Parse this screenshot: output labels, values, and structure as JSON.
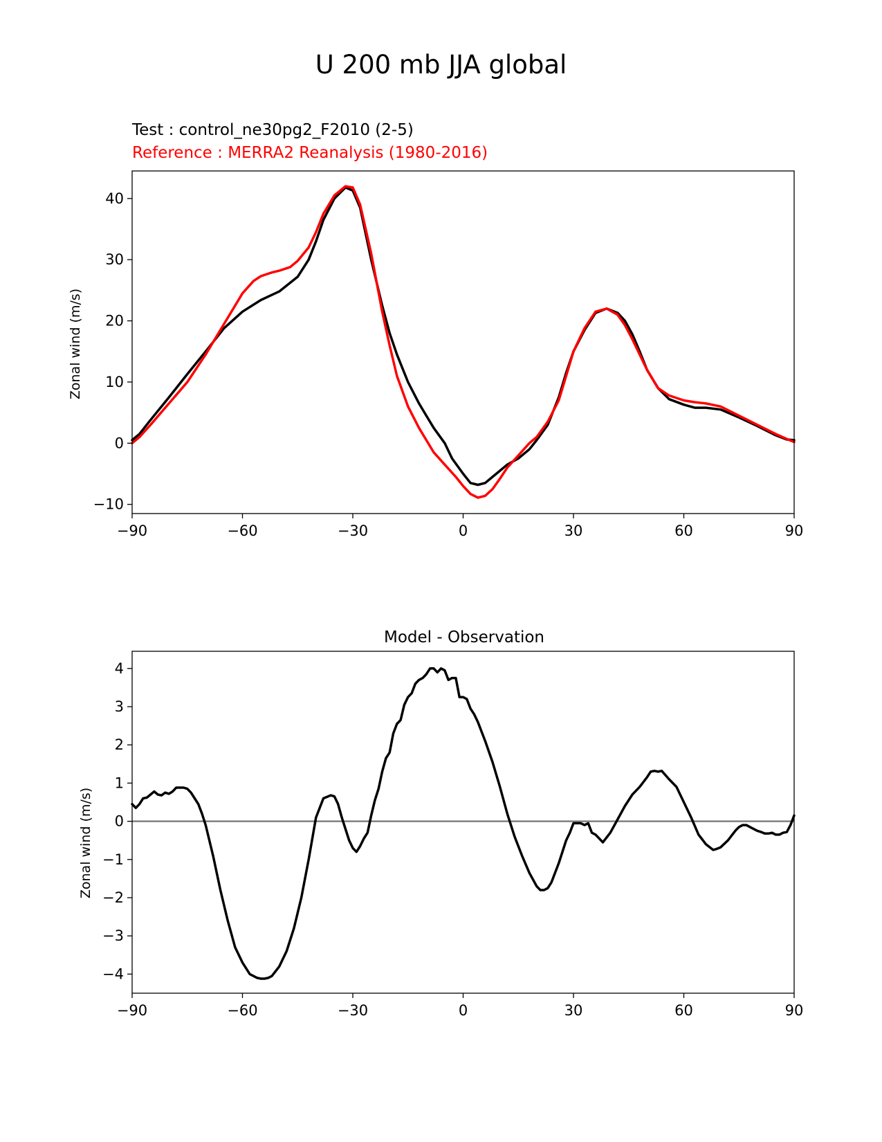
{
  "figure": {
    "title": "U 200 mb JJA global",
    "test_label": "Test : control_ne30pg2_F2010 (2-5)",
    "reference_label": "Reference : MERRA2 Reanalysis (1980-2016)"
  },
  "colors": {
    "test": "#000000",
    "reference": "#ff0000",
    "zero_line": "#808080"
  },
  "chart_data": [
    {
      "type": "line",
      "title": "",
      "xlabel": "",
      "ylabel": "Zonal wind (m/s)",
      "xlim": [
        -90,
        90
      ],
      "ylim": [
        -11.5,
        44.5
      ],
      "xticks": [
        -90,
        -60,
        -30,
        0,
        30,
        60,
        90
      ],
      "xtick_labels": [
        "−90",
        "−60",
        "−30",
        "0",
        "30",
        "60",
        "90"
      ],
      "yticks": [
        -10,
        0,
        10,
        20,
        30,
        40
      ],
      "ytick_labels": [
        "−10",
        "0",
        "10",
        "20",
        "30",
        "40"
      ],
      "series": [
        {
          "name": "Test : control_ne30pg2_F2010 (2-5)",
          "color": "#000000",
          "x": [
            -90,
            -88,
            -85,
            -80,
            -75,
            -70,
            -65,
            -60,
            -55,
            -50,
            -45,
            -42,
            -40,
            -38,
            -35,
            -32,
            -30,
            -28,
            -25,
            -22,
            -20,
            -18,
            -15,
            -12,
            -10,
            -8,
            -5,
            -3,
            0,
            2,
            4,
            6,
            8,
            10,
            12,
            15,
            18,
            20,
            23,
            26,
            28,
            30,
            33,
            36,
            39,
            42,
            44,
            46,
            48,
            50,
            53,
            56,
            60,
            63,
            66,
            70,
            75,
            80,
            85,
            88,
            90
          ],
          "y": [
            0.5,
            1.5,
            3.8,
            7.5,
            11.3,
            15.0,
            18.8,
            21.5,
            23.4,
            24.8,
            27.2,
            30.0,
            33.0,
            36.5,
            40.0,
            41.8,
            41.3,
            38.5,
            30.0,
            22.5,
            18.0,
            14.5,
            10.0,
            6.5,
            4.5,
            2.5,
            0.0,
            -2.5,
            -5.0,
            -6.5,
            -6.8,
            -6.5,
            -5.5,
            -4.5,
            -3.5,
            -2.5,
            -1.0,
            0.5,
            3.0,
            7.5,
            11.5,
            15.0,
            18.5,
            21.3,
            22.0,
            21.3,
            20.0,
            17.8,
            15.0,
            12.0,
            9.0,
            7.2,
            6.3,
            5.8,
            5.8,
            5.5,
            4.2,
            2.8,
            1.3,
            0.6,
            0.5
          ]
        },
        {
          "name": "Reference : MERRA2 Reanalysis (1980-2016)",
          "color": "#ff0000",
          "x": [
            -90,
            -88,
            -85,
            -80,
            -75,
            -70,
            -65,
            -62,
            -60,
            -57,
            -55,
            -52,
            -50,
            -47,
            -45,
            -42,
            -40,
            -38,
            -35,
            -32,
            -30,
            -28,
            -25,
            -22,
            -20,
            -18,
            -15,
            -12,
            -10,
            -8,
            -5,
            -2,
            0,
            2,
            4,
            6,
            8,
            10,
            12,
            15,
            18,
            20,
            23,
            26,
            28,
            30,
            33,
            36,
            39,
            42,
            44,
            46,
            48,
            50,
            53,
            56,
            60,
            63,
            66,
            70,
            75,
            80,
            85,
            88,
            90
          ],
          "y": [
            0.0,
            1.0,
            3.0,
            6.5,
            10.0,
            14.5,
            19.5,
            22.5,
            24.5,
            26.5,
            27.3,
            27.9,
            28.2,
            28.8,
            29.8,
            32.0,
            34.5,
            37.5,
            40.5,
            42.0,
            41.8,
            39.0,
            31.0,
            21.5,
            16.0,
            11.0,
            6.0,
            2.5,
            0.5,
            -1.5,
            -3.5,
            -5.5,
            -7.0,
            -8.3,
            -8.9,
            -8.6,
            -7.5,
            -5.8,
            -4.0,
            -2.0,
            0.0,
            1.0,
            3.5,
            7.0,
            11.0,
            15.0,
            18.8,
            21.5,
            22.0,
            21.0,
            19.3,
            17.0,
            14.5,
            12.0,
            9.0,
            7.8,
            7.0,
            6.7,
            6.5,
            6.0,
            4.5,
            3.0,
            1.5,
            0.7,
            0.2
          ]
        }
      ]
    },
    {
      "type": "line",
      "title": "Model - Observation",
      "xlabel": "",
      "ylabel": "Zonal wind (m/s)",
      "xlim": [
        -90,
        90
      ],
      "ylim": [
        -4.5,
        4.45
      ],
      "xticks": [
        -90,
        -60,
        -30,
        0,
        30,
        60,
        90
      ],
      "xtick_labels": [
        "−90",
        "−60",
        "−30",
        "0",
        "30",
        "60",
        "90"
      ],
      "yticks": [
        -4,
        -3,
        -2,
        -1,
        0,
        1,
        2,
        3,
        4
      ],
      "ytick_labels": [
        "−4",
        "−3",
        "−2",
        "−1",
        "0",
        "1",
        "2",
        "3",
        "4"
      ],
      "zero_line": 0,
      "series": [
        {
          "name": "Model - Observation",
          "color": "#000000",
          "x": [
            -90,
            -89,
            -88,
            -87,
            -86,
            -85,
            -84,
            -83,
            -82,
            -81,
            -80,
            -79,
            -78,
            -77,
            -76,
            -75,
            -74,
            -73,
            -72,
            -71,
            -70,
            -68,
            -66,
            -64,
            -62,
            -60,
            -58,
            -56,
            -55,
            -54,
            -53,
            -52,
            -50,
            -48,
            -46,
            -44,
            -42,
            -40,
            -38,
            -36,
            -35,
            -34,
            -33,
            -32,
            -31,
            -30,
            -29,
            -28,
            -27,
            -26,
            -25,
            -24,
            -23,
            -22,
            -21,
            -20,
            -19,
            -18,
            -17,
            -16,
            -15,
            -14,
            -13,
            -12,
            -11,
            -10,
            -9,
            -8,
            -7,
            -6,
            -5,
            -4,
            -3,
            -2,
            -1,
            0,
            1,
            2,
            3,
            4,
            6,
            8,
            10,
            12,
            14,
            16,
            18,
            20,
            21,
            22,
            23,
            24,
            26,
            28,
            29,
            30,
            31,
            32,
            33,
            34,
            35,
            36,
            38,
            40,
            42,
            44,
            46,
            48,
            50,
            51,
            52,
            53,
            54,
            56,
            58,
            60,
            62,
            64,
            66,
            68,
            69,
            70,
            72,
            74,
            75,
            76,
            77,
            78,
            79,
            80,
            81,
            82,
            83,
            84,
            85,
            86,
            87,
            88,
            89,
            90
          ],
          "y": [
            0.45,
            0.35,
            0.45,
            0.6,
            0.62,
            0.7,
            0.78,
            0.7,
            0.68,
            0.75,
            0.72,
            0.78,
            0.88,
            0.88,
            0.88,
            0.85,
            0.75,
            0.6,
            0.45,
            0.2,
            -0.1,
            -0.9,
            -1.8,
            -2.6,
            -3.3,
            -3.7,
            -4.0,
            -4.1,
            -4.12,
            -4.12,
            -4.1,
            -4.05,
            -3.8,
            -3.4,
            -2.8,
            -2.0,
            -1.0,
            0.1,
            0.6,
            0.68,
            0.65,
            0.45,
            0.1,
            -0.2,
            -0.5,
            -0.7,
            -0.8,
            -0.65,
            -0.45,
            -0.3,
            0.15,
            0.55,
            0.85,
            1.3,
            1.65,
            1.8,
            2.3,
            2.55,
            2.65,
            3.05,
            3.25,
            3.35,
            3.6,
            3.7,
            3.75,
            3.85,
            4.0,
            4.0,
            3.9,
            4.0,
            3.95,
            3.7,
            3.75,
            3.75,
            3.25,
            3.25,
            3.2,
            2.95,
            2.8,
            2.6,
            2.1,
            1.55,
            0.9,
            0.2,
            -0.4,
            -0.9,
            -1.35,
            -1.7,
            -1.8,
            -1.8,
            -1.75,
            -1.6,
            -1.1,
            -0.5,
            -0.3,
            -0.05,
            -0.05,
            -0.05,
            -0.1,
            -0.05,
            -0.3,
            -0.35,
            -0.55,
            -0.3,
            0.05,
            0.4,
            0.7,
            0.9,
            1.15,
            1.3,
            1.32,
            1.3,
            1.32,
            1.1,
            0.9,
            0.5,
            0.1,
            -0.35,
            -0.6,
            -0.75,
            -0.72,
            -0.68,
            -0.5,
            -0.25,
            -0.15,
            -0.1,
            -0.1,
            -0.15,
            -0.2,
            -0.25,
            -0.28,
            -0.32,
            -0.32,
            -0.3,
            -0.35,
            -0.35,
            -0.3,
            -0.28,
            -0.1,
            0.15
          ]
        }
      ]
    }
  ]
}
